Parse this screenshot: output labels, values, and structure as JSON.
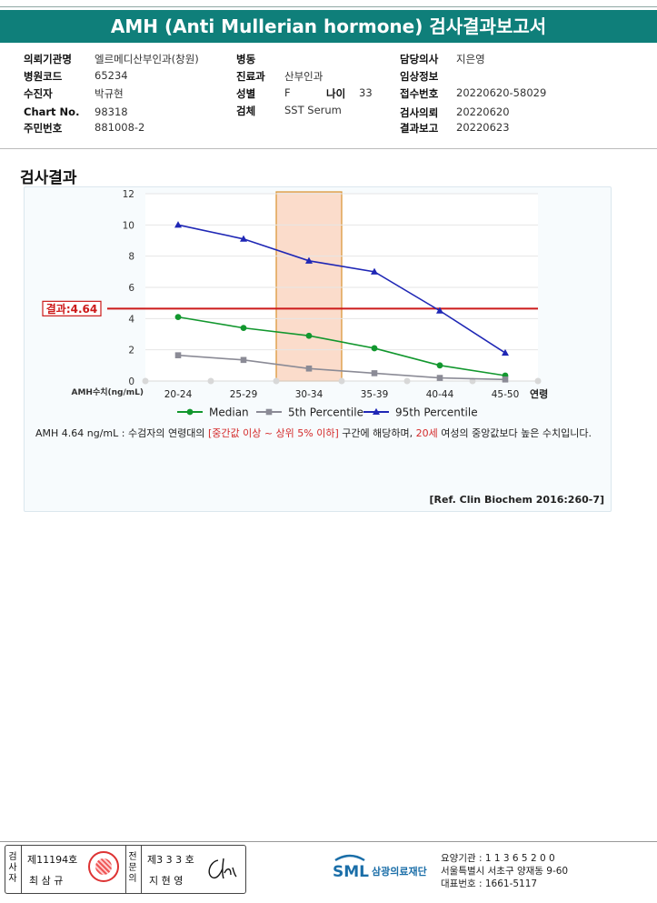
{
  "header": {
    "title": "AMH (Anti Mullerian hormone) 검사결과보고서"
  },
  "info": {
    "col1": [
      {
        "label": "의뢰기관명",
        "value": "엘르메디산부인과(창원)"
      },
      {
        "label": "병원코드",
        "value": "65234"
      },
      {
        "label": "수진자",
        "value": "박규현"
      },
      {
        "label": "Chart No.",
        "value": "98318"
      },
      {
        "label": "주민번호",
        "value": "881008-2"
      }
    ],
    "col2": [
      {
        "label": "병동",
        "value": ""
      },
      {
        "label": "진료과",
        "value": "산부인과"
      },
      {
        "label": "성별",
        "value": "F"
      },
      {
        "label": "검체",
        "value": "SST Serum"
      }
    ],
    "age": {
      "label": "나이",
      "value": "33"
    },
    "col3": [
      {
        "label": "담당의사",
        "value": "지은영"
      },
      {
        "label": "임상정보",
        "value": ""
      },
      {
        "label": "접수번호",
        "value": "20220620-58029"
      },
      {
        "label": "검사의뢰",
        "value": "20220620"
      },
      {
        "label": "결과보고",
        "value": "20220623"
      }
    ]
  },
  "section_title": "검사결과",
  "chart_data": {
    "type": "line",
    "categories": [
      "20-24",
      "25-29",
      "30-34",
      "35-39",
      "40-44",
      "45-50"
    ],
    "x_end_label": "연령",
    "y_axis_label": "AMH수치(ng/mL)",
    "ylim": [
      0,
      12
    ],
    "yticks": [
      "0",
      "2",
      "4",
      "6",
      "8",
      "10",
      "12"
    ],
    "series": [
      {
        "name": "Median",
        "color": "#12972e",
        "marker": "circle",
        "values": [
          4.1,
          3.4,
          2.9,
          2.1,
          1.0,
          0.35
        ]
      },
      {
        "name": "5th Percentile",
        "color": "#8b8b96",
        "marker": "square",
        "values": [
          1.65,
          1.35,
          0.8,
          0.5,
          0.2,
          0.1
        ]
      },
      {
        "name": "95th Percentile",
        "color": "#1f27b5",
        "marker": "triangle",
        "values": [
          10.0,
          9.1,
          7.7,
          7.0,
          4.5,
          1.8
        ]
      }
    ],
    "highlight_category": "30-34",
    "result": {
      "label": "결과:4.64",
      "value": 4.64,
      "color": "#cc1a1a"
    }
  },
  "result_text": {
    "p1": "AMH  4.64 ng/mL : 수검자의 연령대의 ",
    "p2": "[중간값 이상 ~ 상위 5% 이하]",
    "p3": "  구간에 해당하며, ",
    "p4": "20세",
    "p5": " 여성의 중앙값보다 높은 수치입니다."
  },
  "reference": "[Ref. Clin Biochem 2016:260-7]",
  "footer": {
    "sign": {
      "l1": "검사자",
      "l1_no": "제11194호",
      "l1_name": "최 삼 규",
      "l2": "전문의",
      "l2_no": "제3 3 3 호",
      "l2_name": "지 현 영"
    },
    "logo_text": "SML",
    "logo_sub": "삼광의료재단",
    "addr1": "요양기관 : 1 1 3 6 5 2 0 0",
    "addr2": "서울특별시 서초구 양재동 9-60",
    "addr3": "대표번호 : 1661-5117",
    "colors": {
      "brand": "#0f7f7a",
      "logo": "#1a6ea8"
    }
  }
}
